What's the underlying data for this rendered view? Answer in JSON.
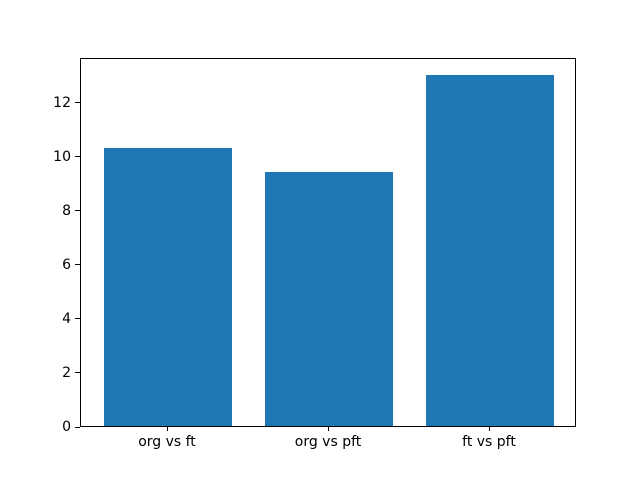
{
  "figure": {
    "background": "#ffffff"
  },
  "chart_data": {
    "type": "bar",
    "categories": [
      "org vs ft",
      "org vs pft",
      "ft vs pft"
    ],
    "values": [
      10.3,
      9.4,
      13.0
    ],
    "title": "",
    "xlabel": "",
    "ylabel": "",
    "ylim": [
      0,
      13.65
    ],
    "yticks": [
      0,
      2,
      4,
      6,
      8,
      10,
      12
    ],
    "bar_color": "#1f77b4",
    "bar_width": 0.8,
    "x_margin": 0.05,
    "axis_color": "#000000",
    "tick_label_color": "#000000",
    "grid": false,
    "legend": false
  }
}
